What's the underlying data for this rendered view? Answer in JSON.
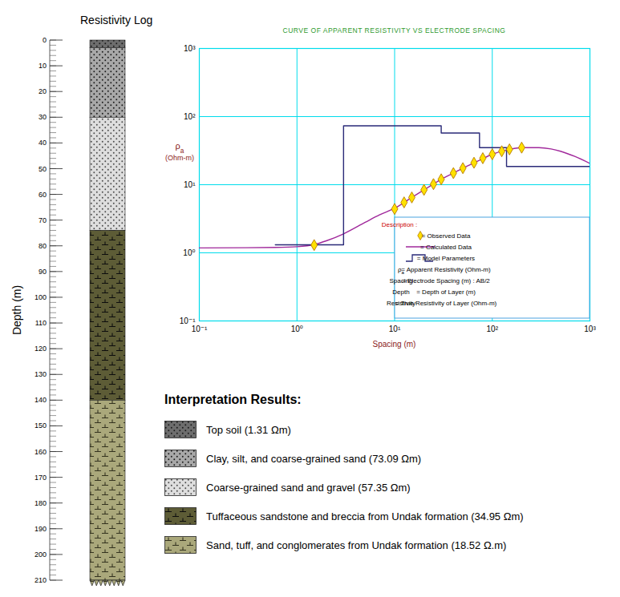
{
  "resistivity_log": {
    "title": "Resistivity Log",
    "ylabel": "Depth (m)",
    "ylim": [
      0,
      210
    ],
    "yticks": [
      0,
      10,
      20,
      30,
      40,
      50,
      60,
      70,
      80,
      90,
      100,
      110,
      120,
      130,
      140,
      150,
      160,
      170,
      180,
      190,
      200,
      210
    ],
    "yminor_step": 2,
    "legend_title": "Interpretation Results:",
    "layers": [
      {
        "label": "Top soil (1.31 Ωm)",
        "top": 0,
        "bottom": 3,
        "color": "#6d6d6d"
      },
      {
        "label": "Clay, silt, and coarse-grained sand (73.09 Ωm)",
        "top": 3,
        "bottom": 30,
        "color": "#a8a8a8"
      },
      {
        "label": "Coarse-grained sand and gravel (57.35 Ωm)",
        "top": 30,
        "bottom": 74,
        "color": "#dedede"
      },
      {
        "label": "Tuffaceous sandstone and breccia from Undak formation (34.95 Ωm)",
        "top": 74,
        "bottom": 140,
        "color": "#5d5c36"
      },
      {
        "label": "Sand, tuff, and conglomerates from Undak formation (18.52 Ω.m)",
        "top": 140,
        "bottom": 210,
        "color": "#aaa87b"
      }
    ]
  },
  "chart_data": {
    "type": "line",
    "title": "CURVE OF APPARENT RESISTIVITY VS ELECTRODE SPACING",
    "xlabel": "Spacing (m)",
    "ylabel": [
      "ρa",
      "(Ohm-m)"
    ],
    "log": true,
    "grid": true,
    "xlim": [
      0.1,
      1000
    ],
    "ylim": [
      0.1,
      1000
    ],
    "xticks": [
      {
        "value": 0.1,
        "label": "10⁻¹"
      },
      {
        "value": 1,
        "label": "10⁰"
      },
      {
        "value": 10,
        "label": "10¹"
      },
      {
        "value": 100,
        "label": "10²"
      },
      {
        "value": 1000,
        "label": "10³"
      }
    ],
    "yticks": [
      {
        "value": 0.1,
        "label": "10⁻¹"
      },
      {
        "value": 1,
        "label": "10⁰"
      },
      {
        "value": 10,
        "label": "10¹"
      },
      {
        "value": 100,
        "label": "10²"
      },
      {
        "value": 1000,
        "label": "10³"
      }
    ],
    "legend": "bottom-right",
    "legend_title": "Description :",
    "series": [
      {
        "name": "= Observed Data",
        "type": "scatter",
        "marker": "diamond",
        "color": "#ffe100",
        "x": [
          1.5,
          10,
          12.5,
          15,
          20,
          25,
          30,
          40,
          50,
          65,
          80,
          100,
          125,
          150,
          200
        ],
        "values": [
          1.3,
          4.4,
          5.5,
          6.5,
          8.4,
          10.2,
          12,
          14.8,
          17.5,
          21,
          24.5,
          28,
          31,
          33,
          35
        ]
      },
      {
        "name": "= Calculated Data",
        "type": "line",
        "color": "#a0289b",
        "x": [
          0.1,
          0.3,
          0.6,
          1,
          1.5,
          2,
          3,
          5,
          7,
          10,
          15,
          20,
          30,
          40,
          50,
          70,
          100,
          150,
          200,
          300,
          400,
          500,
          700,
          1000
        ],
        "values": [
          1.18,
          1.19,
          1.2,
          1.23,
          1.32,
          1.5,
          1.9,
          2.8,
          3.6,
          4.5,
          6.5,
          8.4,
          12,
          14.8,
          17.5,
          22,
          28,
          33,
          35,
          35,
          33.5,
          31,
          26,
          20.5
        ]
      },
      {
        "name": "= Model Parameters",
        "type": "line",
        "line_style": "step",
        "color": "#2a2a78",
        "x": [
          0.6,
          3,
          3,
          30,
          30,
          74,
          74,
          140,
          140,
          1000
        ],
        "values": [
          1.31,
          1.31,
          73.09,
          73.09,
          57.35,
          57.35,
          34.95,
          34.95,
          18.52,
          18.52
        ]
      }
    ],
    "legend_notes": [
      {
        "key": "ρa",
        "text": "= Apparent Resistivity (Ohm-m)"
      },
      {
        "key": "Spacing",
        "text": "= Electrode Spacing (m) : AB/2"
      },
      {
        "key": "Depth",
        "text": "= Depth of Layer (m)"
      },
      {
        "key": "Resistivity",
        "text": "= True Resistivity of Layer (Ohm-m)"
      }
    ]
  }
}
